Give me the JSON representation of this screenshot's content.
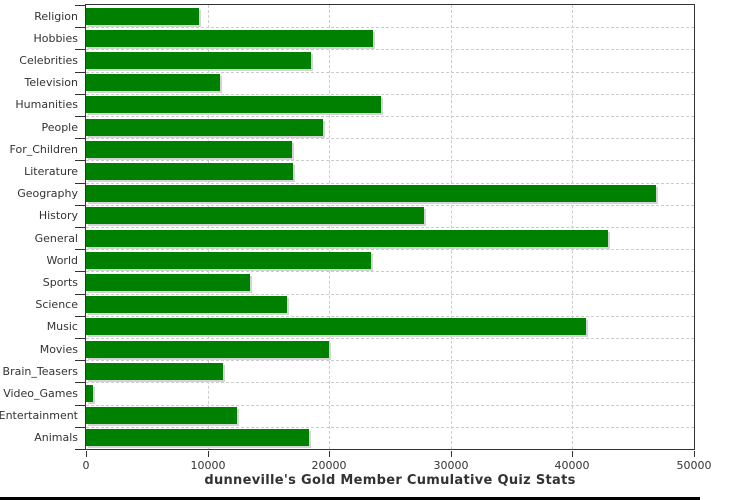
{
  "chart_data": {
    "type": "bar",
    "orientation": "horizontal",
    "title": "dunneville's Gold Member Cumulative Quiz Stats",
    "categories": [
      "Religion",
      "Hobbies",
      "Celebrities",
      "Television",
      "Humanities",
      "People",
      "For_Children",
      "Literature",
      "Geography",
      "History",
      "General",
      "World",
      "Sports",
      "Science",
      "Music",
      "Movies",
      "Brain_Teasers",
      "Video_Games",
      "Entertainment",
      "Animals"
    ],
    "values": [
      9300,
      23600,
      18500,
      11000,
      24300,
      19500,
      16900,
      17000,
      46900,
      27800,
      42900,
      23400,
      13500,
      16500,
      41100,
      20000,
      11300,
      600,
      12400,
      18300
    ],
    "xlim": [
      0,
      50000
    ],
    "x_tick_values": [
      0,
      10000,
      20000,
      30000,
      40000,
      50000
    ],
    "x_tick_labels": [
      "0",
      "10000",
      "20000",
      "30000",
      "40000",
      "50000"
    ],
    "grid": "dashed vertical at ticks and horizontal at category boundaries",
    "legend": "none",
    "bar_color": "#008000",
    "bar_shadow_color": "#d4d4d4",
    "axis_color": "#333333",
    "grid_color": "#cccccc",
    "text_color": "#333333"
  }
}
